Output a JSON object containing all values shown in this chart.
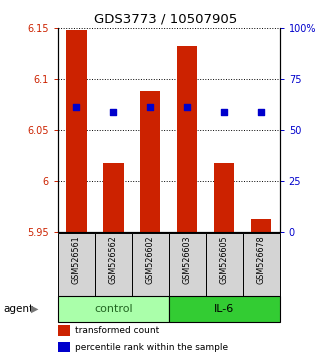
{
  "title": "GDS3773 / 10507905",
  "samples": [
    "GSM526561",
    "GSM526562",
    "GSM526602",
    "GSM526603",
    "GSM526605",
    "GSM526678"
  ],
  "bar_bottoms": [
    5.95,
    5.95,
    5.95,
    5.95,
    5.95,
    5.95
  ],
  "bar_tops": [
    6.148,
    6.018,
    6.088,
    6.133,
    6.018,
    5.963
  ],
  "percentile_values": [
    6.073,
    6.068,
    6.073,
    6.073,
    6.068,
    6.068
  ],
  "ylim_left": [
    5.95,
    6.15
  ],
  "ylim_right": [
    0,
    100
  ],
  "yticks_left": [
    5.95,
    6.0,
    6.05,
    6.1,
    6.15
  ],
  "yticks_right": [
    0,
    25,
    50,
    75,
    100
  ],
  "ytick_labels_left": [
    "5.95",
    "6",
    "6.05",
    "6.1",
    "6.15"
  ],
  "ytick_labels_right": [
    "0",
    "25",
    "50",
    "75",
    "100%"
  ],
  "bar_color": "#cc2200",
  "dot_color": "#0000cc",
  "control_color": "#aaffaa",
  "il6_color": "#33cc33",
  "group_label_control_color": "#226622",
  "xlabel_color": "#cc2200",
  "ylabel_right_color": "#0000cc",
  "bar_width": 0.55,
  "dot_size": 22
}
